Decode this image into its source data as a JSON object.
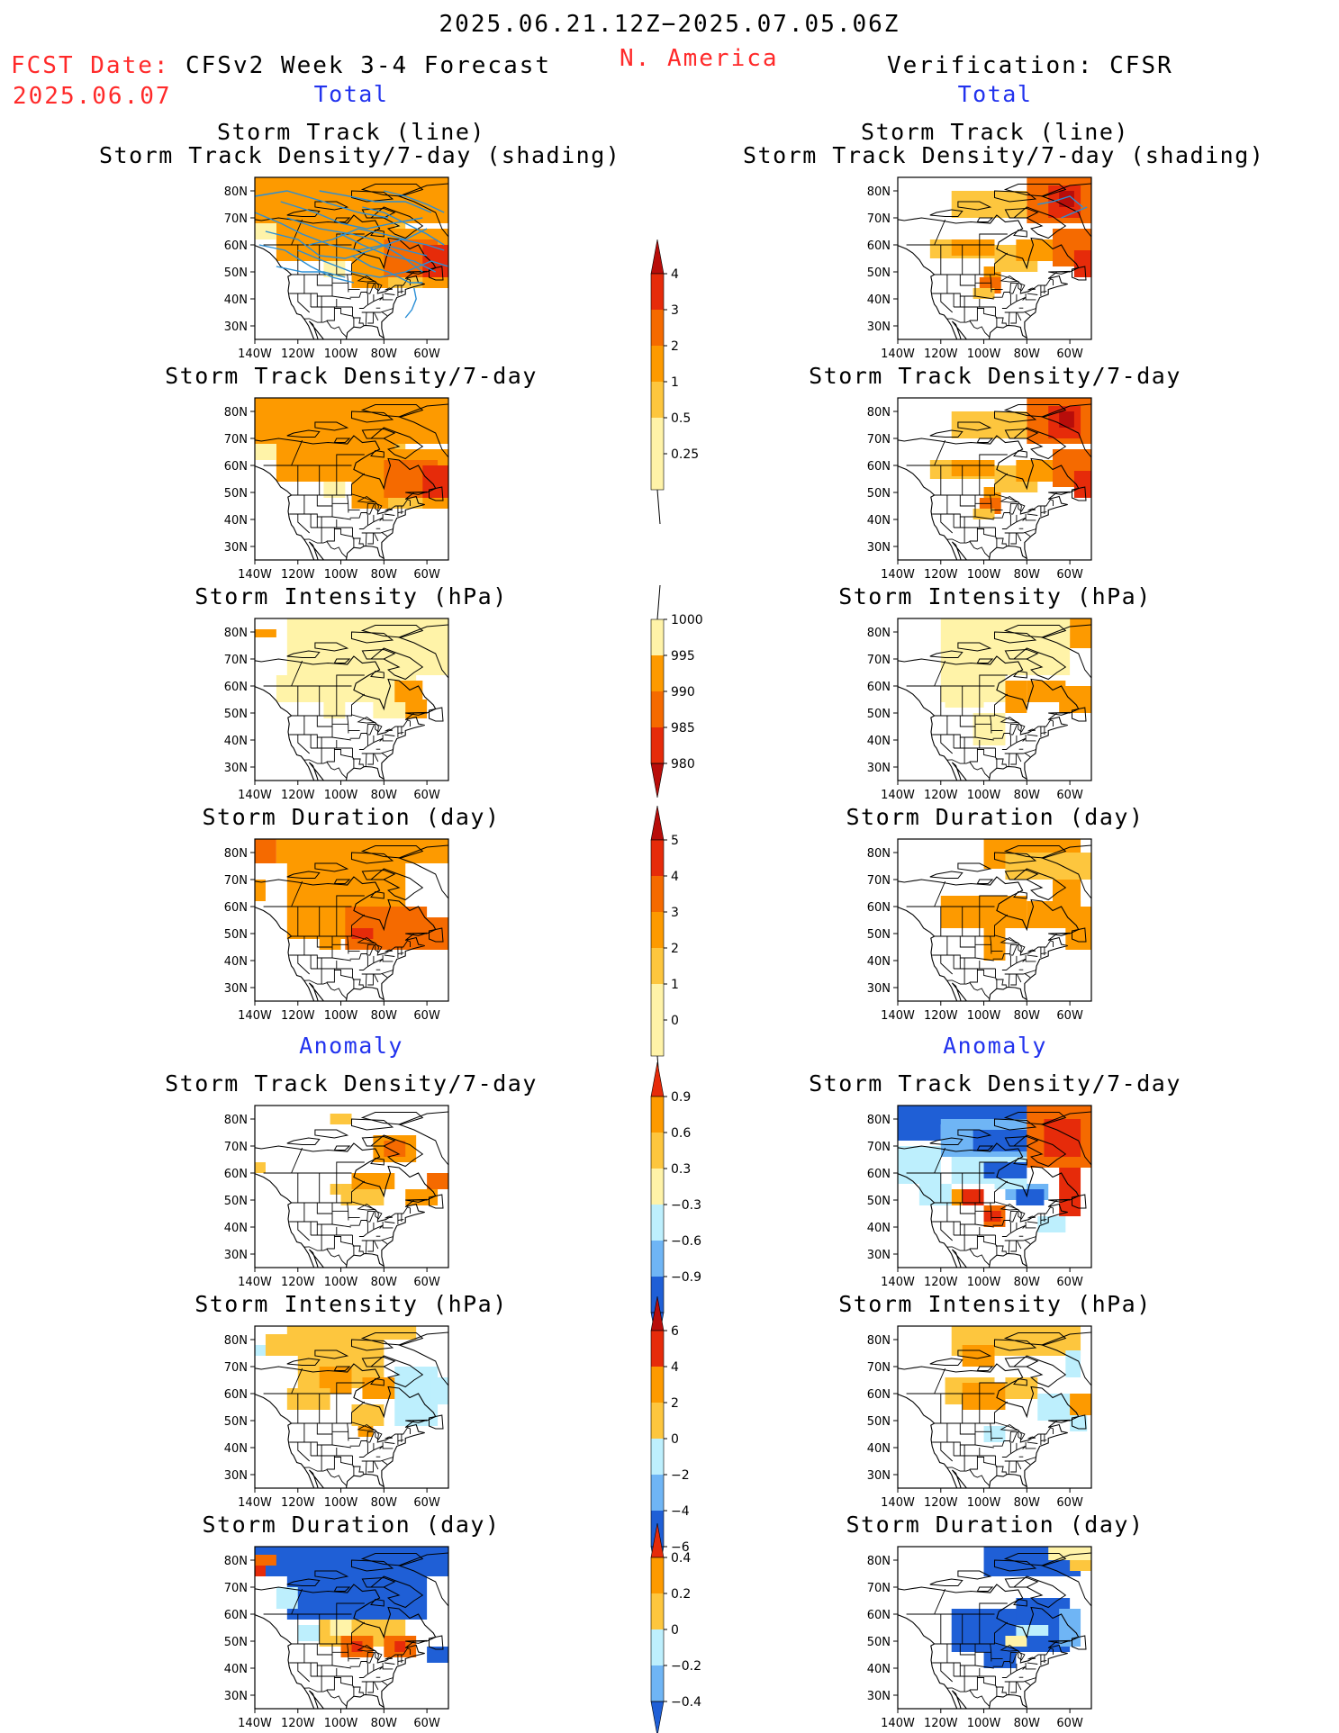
{
  "header": {
    "date_range": "2025.06.21.12Z−2025.07.05.06Z",
    "fcst_label": "FCST Date:",
    "fcst_date": "2025.06.07",
    "left_title": "CFSv2 Week 3-4 Forecast",
    "region": "N. America",
    "right_title": "Verification: CFSR"
  },
  "sections": {
    "total": "Total",
    "anomaly": "Anomaly"
  },
  "panel_titles": {
    "track_line": "Storm Track (line)",
    "track_shading": "Storm Track Density/7-day (shading)",
    "density": "Storm Track Density/7-day",
    "intensity": "Storm Intensity (hPa)",
    "duration": "Storm Duration (day)"
  },
  "axes": {
    "lat_labels": [
      "80N",
      "70N",
      "60N",
      "50N",
      "40N",
      "30N"
    ],
    "lon_labels": [
      "140W",
      "120W",
      "100W",
      "80W",
      "60W"
    ]
  },
  "colorbars": [
    {
      "id": "density_total",
      "labels": [
        "4",
        "3",
        "2",
        "1",
        "0.5",
        "0.25"
      ]
    },
    {
      "id": "intensity_total",
      "labels": [
        "1000",
        "995",
        "990",
        "985",
        "980"
      ]
    },
    {
      "id": "duration_total",
      "labels": [
        "5",
        "4",
        "3",
        "2",
        "1",
        "0"
      ]
    },
    {
      "id": "density_anom",
      "labels": [
        "0.9",
        "0.6",
        "0.3",
        "−0.3",
        "−0.6",
        "−0.9"
      ]
    },
    {
      "id": "intensity_anom",
      "labels": [
        "6",
        "4",
        "2",
        "0",
        "−2",
        "−4",
        "−6"
      ]
    },
    {
      "id": "duration_anom",
      "labels": [
        "0.4",
        "0.2",
        "0",
        "−0.2",
        "−0.4"
      ]
    }
  ],
  "chart_data": {
    "type": "heatmap",
    "lon_range": [
      -140,
      -50
    ],
    "lat_range": [
      25,
      85
    ],
    "colors": {
      "cream": "#fff3a8",
      "light_orange": "#fdc63e",
      "orange": "#fd9a00",
      "dark_orange": "#f56a00",
      "red": "#e62b0a",
      "dark_red": "#b80d0a",
      "light_blue": "#bdeffd",
      "mid_blue": "#6fb5f5",
      "blue": "#1f5fd6",
      "track_line": "#2a8fd6"
    }
  }
}
